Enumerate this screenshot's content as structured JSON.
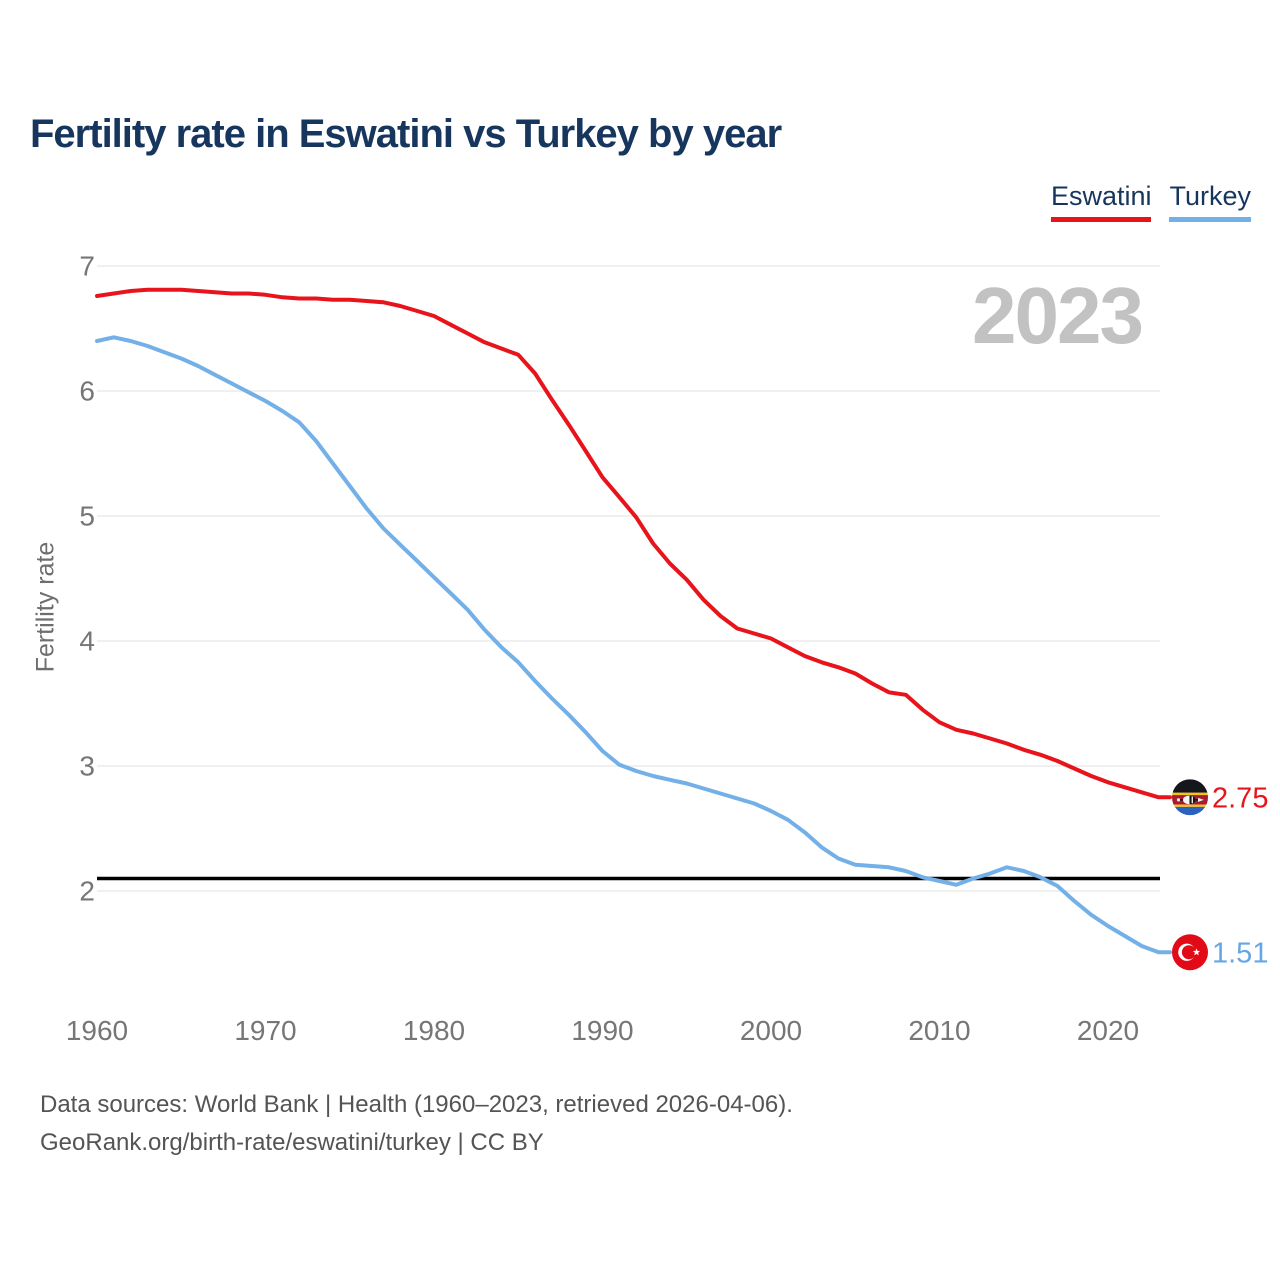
{
  "title": "Fertility rate in Eswatini vs Turkey by year",
  "watermark_year": "2023",
  "legend": [
    {
      "label": "Eswatini",
      "color": "#e8141b"
    },
    {
      "label": "Turkey",
      "color": "#74b0e8"
    }
  ],
  "end_labels": {
    "eswatini": "2.75",
    "turkey": "1.51"
  },
  "footer": {
    "line1": "Data sources: World Bank | Health (1960–2023, retrieved 2026-04-06).",
    "line2": "GeoRank.org/birth-rate/eswatini/turkey | CC BY"
  },
  "chart_data": {
    "type": "line",
    "title": "Fertility rate in Eswatini vs Turkey by year",
    "xlabel": "",
    "ylabel": "Fertility rate",
    "xlim": [
      1960,
      2023
    ],
    "ylim": [
      1.4,
      7.05
    ],
    "x_ticks": [
      1960,
      1970,
      1980,
      1990,
      2000,
      2010,
      2020
    ],
    "y_ticks": [
      2,
      3,
      4,
      5,
      6,
      7
    ],
    "grid": "horizontal",
    "legend_position": "top-right",
    "reference_line": 2.1,
    "x": [
      1960,
      1961,
      1962,
      1963,
      1964,
      1965,
      1966,
      1967,
      1968,
      1969,
      1970,
      1971,
      1972,
      1973,
      1974,
      1975,
      1976,
      1977,
      1978,
      1979,
      1980,
      1981,
      1982,
      1983,
      1984,
      1985,
      1986,
      1987,
      1988,
      1989,
      1990,
      1991,
      1992,
      1993,
      1994,
      1995,
      1996,
      1997,
      1998,
      1999,
      2000,
      2001,
      2002,
      2003,
      2004,
      2005,
      2006,
      2007,
      2008,
      2009,
      2010,
      2011,
      2012,
      2013,
      2014,
      2015,
      2016,
      2017,
      2018,
      2019,
      2020,
      2021,
      2022,
      2023
    ],
    "series": [
      {
        "name": "Eswatini",
        "color": "#e8141b",
        "end_value": 2.75,
        "values": [
          6.76,
          6.78,
          6.8,
          6.81,
          6.81,
          6.81,
          6.8,
          6.79,
          6.78,
          6.78,
          6.77,
          6.75,
          6.74,
          6.74,
          6.73,
          6.73,
          6.72,
          6.71,
          6.68,
          6.64,
          6.6,
          6.53,
          6.46,
          6.39,
          6.34,
          6.29,
          6.14,
          5.93,
          5.73,
          5.52,
          5.31,
          5.15,
          4.99,
          4.78,
          4.62,
          4.49,
          4.33,
          4.2,
          4.1,
          4.06,
          4.02,
          3.95,
          3.88,
          3.83,
          3.79,
          3.74,
          3.66,
          3.59,
          3.57,
          3.45,
          3.35,
          3.29,
          3.26,
          3.22,
          3.18,
          3.13,
          3.09,
          3.04,
          2.98,
          2.92,
          2.87,
          2.83,
          2.79,
          2.75
        ]
      },
      {
        "name": "Turkey",
        "color": "#74b0e8",
        "end_value": 1.51,
        "values": [
          6.4,
          6.43,
          6.4,
          6.36,
          6.31,
          6.26,
          6.2,
          6.13,
          6.06,
          5.99,
          5.92,
          5.84,
          5.75,
          5.6,
          5.42,
          5.24,
          5.06,
          4.9,
          4.77,
          4.64,
          4.51,
          4.38,
          4.25,
          4.09,
          3.95,
          3.83,
          3.68,
          3.54,
          3.41,
          3.27,
          3.12,
          3.01,
          2.96,
          2.92,
          2.89,
          2.86,
          2.82,
          2.78,
          2.74,
          2.7,
          2.64,
          2.57,
          2.47,
          2.35,
          2.26,
          2.21,
          2.2,
          2.19,
          2.16,
          2.11,
          2.08,
          2.05,
          2.1,
          2.14,
          2.19,
          2.16,
          2.11,
          2.04,
          1.92,
          1.81,
          1.72,
          1.64,
          1.56,
          1.51
        ]
      }
    ]
  }
}
